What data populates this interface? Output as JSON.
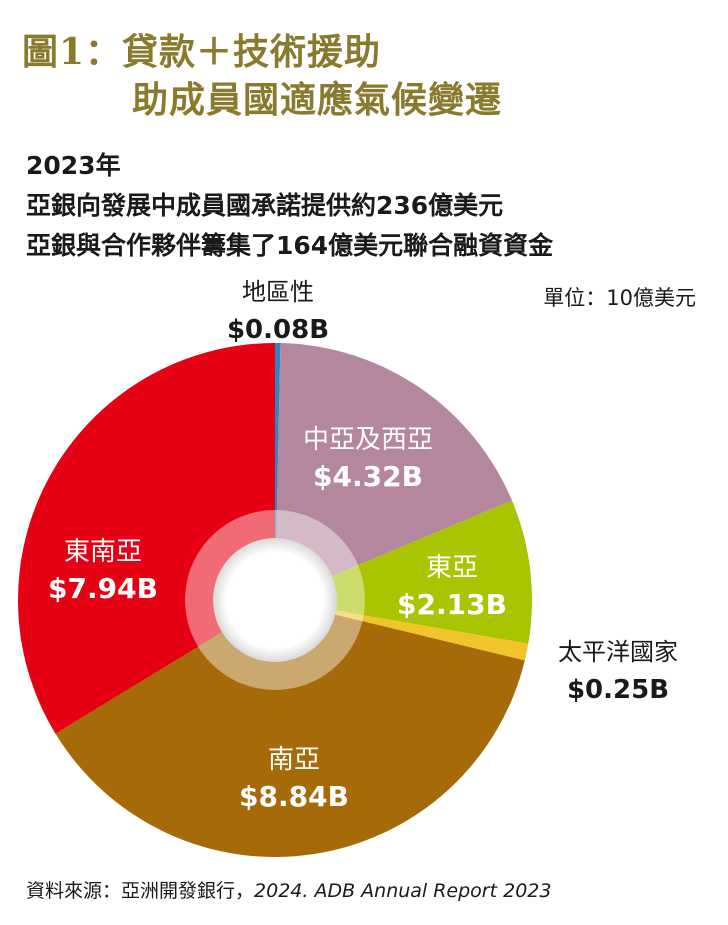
{
  "title": {
    "line1": "圖1：貸款＋技術援助",
    "line2": "助成員國適應氣候變遷"
  },
  "subtitle": {
    "year": "2023年",
    "line1": "亞銀向發展中成員國承諾提供約236億美元",
    "line2": "亞銀與合作夥伴籌集了164億美元聯合融資資金"
  },
  "unit_label": "單位：10億美元",
  "source": {
    "prefix": "資料來源：亞洲開發銀行，",
    "italic": "2024. ADB Annual Report 2023"
  },
  "chart_data": {
    "type": "pie",
    "slices": [
      {
        "name": "地區性",
        "value_label": "$0.08B",
        "value": 0.08,
        "color": "#2e86c1"
      },
      {
        "name": "中亞及西亞",
        "value_label": "$4.32B",
        "value": 4.32,
        "color": "#b5879f"
      },
      {
        "name": "東亞",
        "value_label": "$2.13B",
        "value": 2.13,
        "color": "#a9c400"
      },
      {
        "name": "太平洋國家",
        "value_label": "$0.25B",
        "value": 0.25,
        "color": "#f2c42c"
      },
      {
        "name": "南亞",
        "value_label": "$8.84B",
        "value": 8.84,
        "color": "#a66a08"
      },
      {
        "name": "東南亞",
        "value_label": "$7.94B",
        "value": 7.94,
        "color": "#e60014"
      }
    ]
  }
}
